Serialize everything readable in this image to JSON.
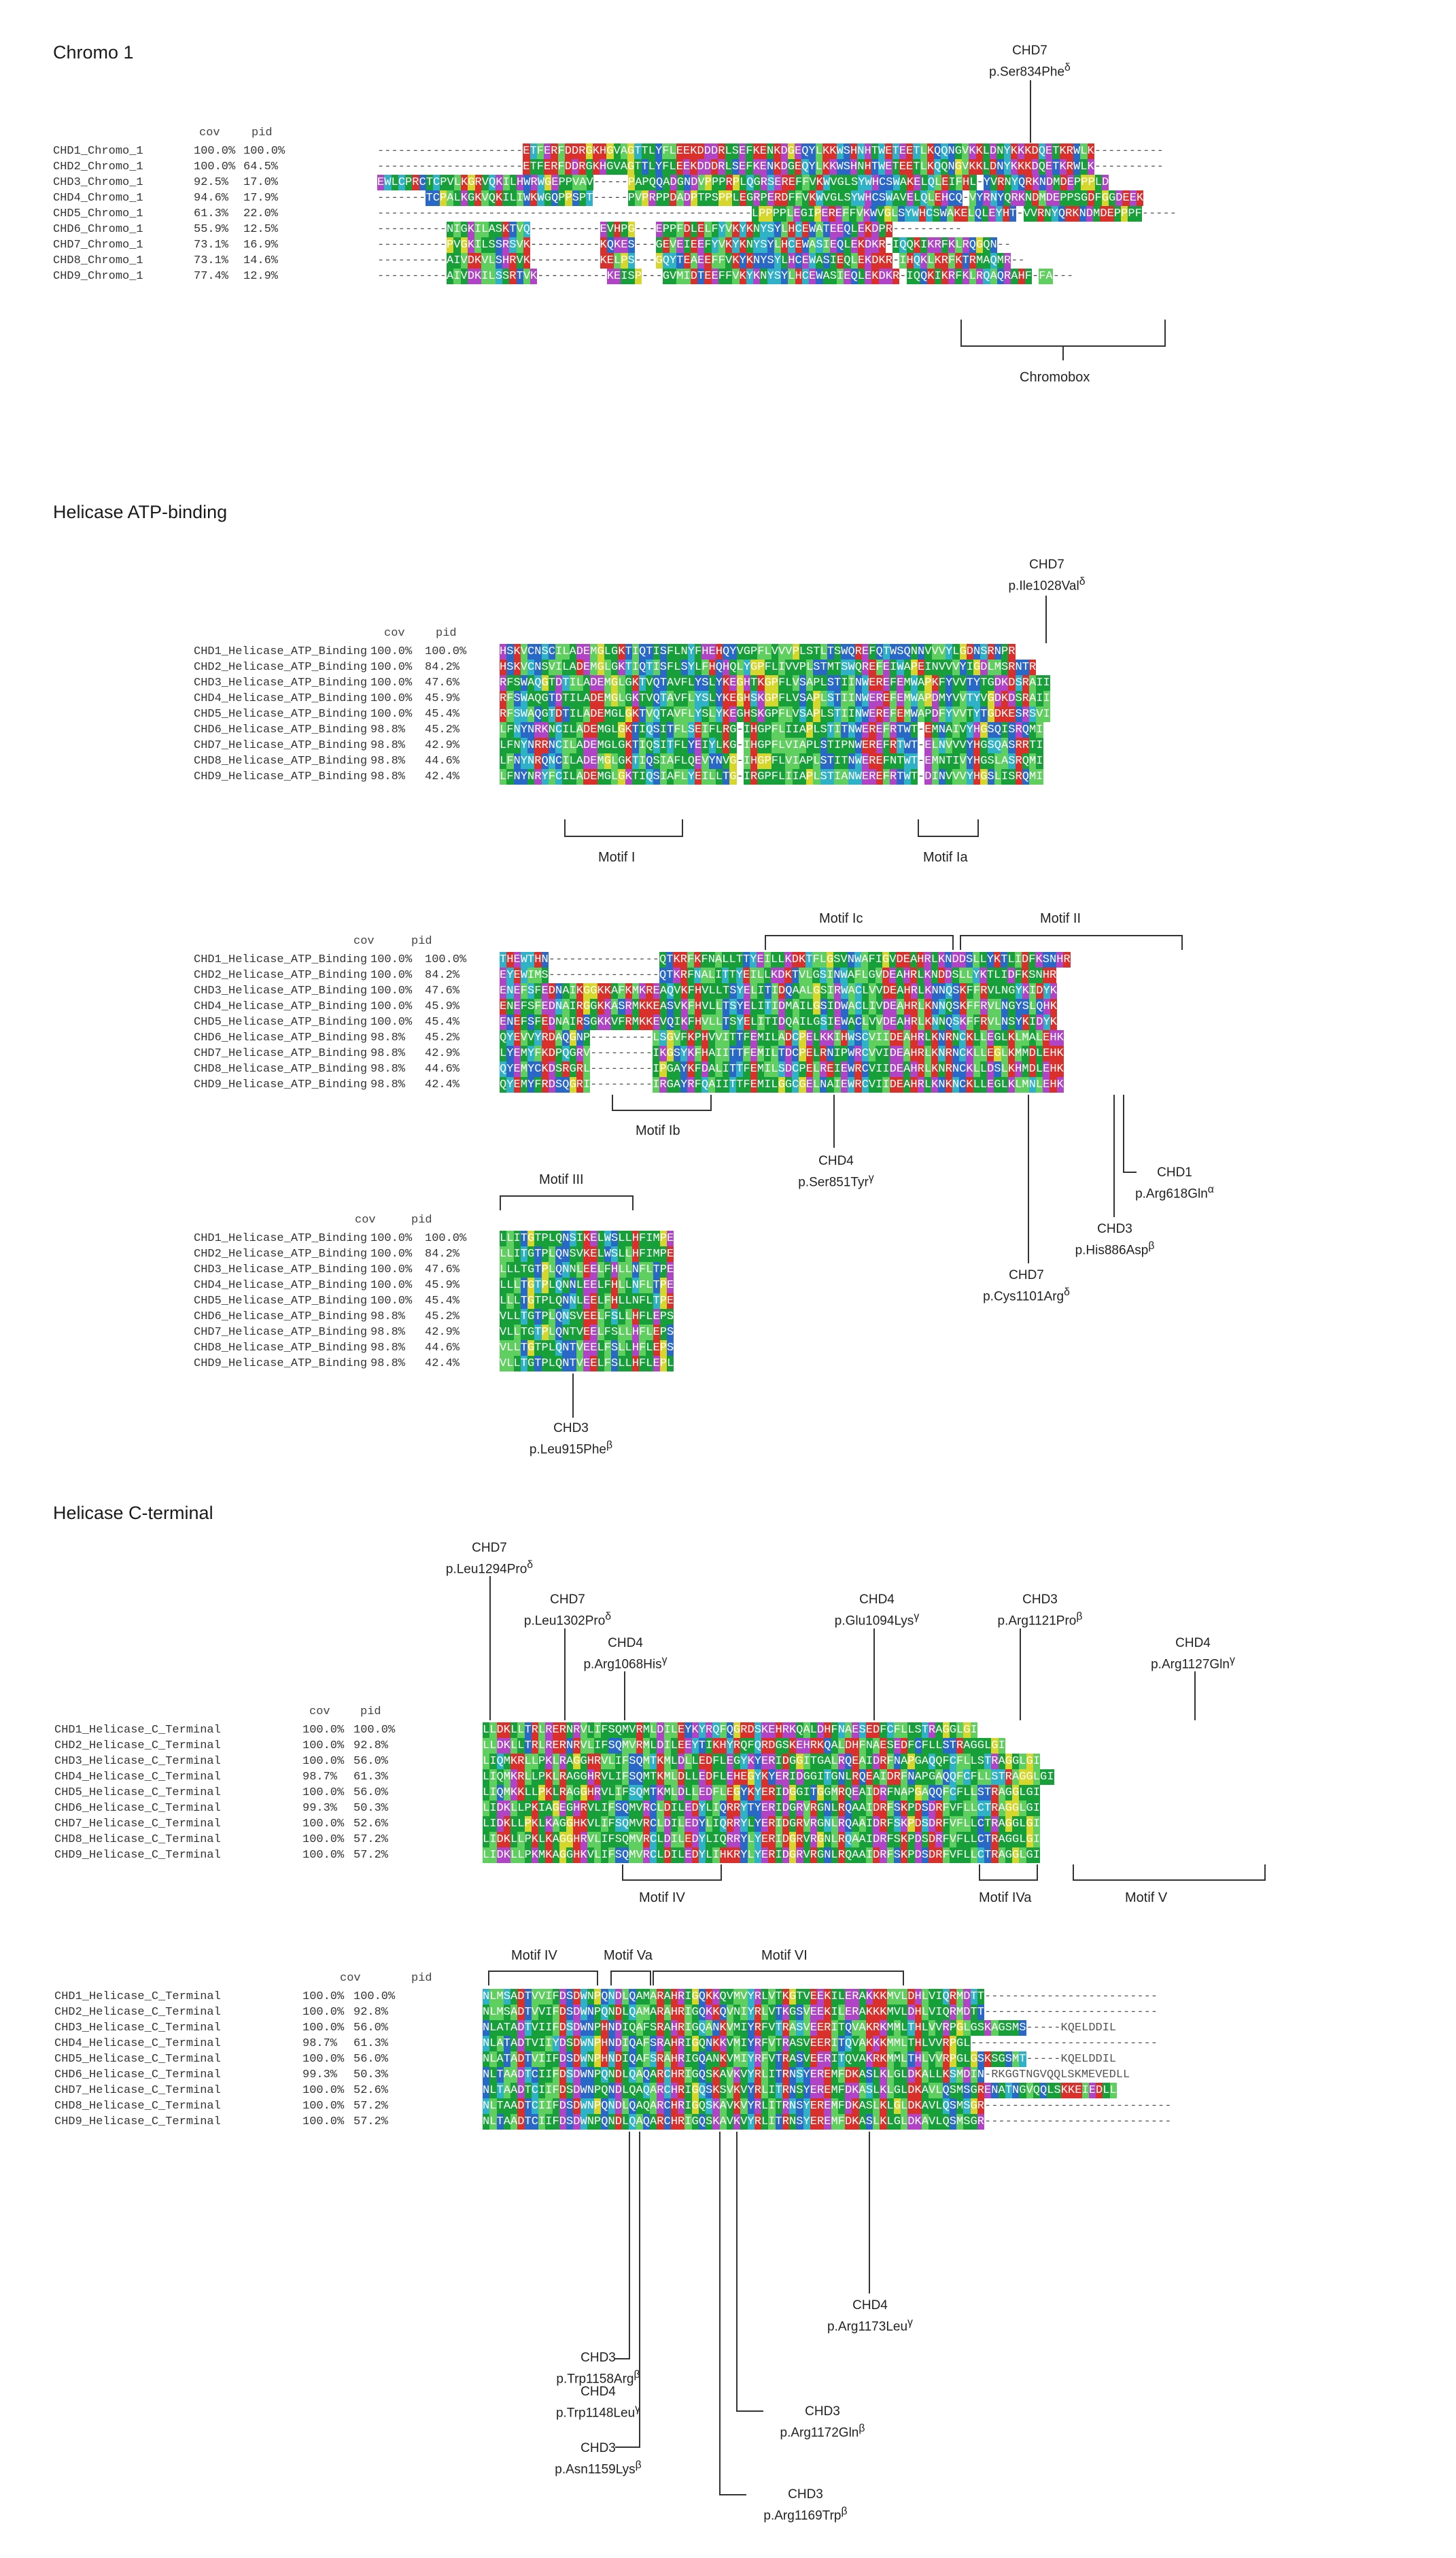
{
  "sections": [
    {
      "id": "chromo",
      "title": "Chromo 1",
      "cov_header": "cov",
      "pid_header": "pid",
      "rows": [
        {
          "name": "CHD1_Chromo_1",
          "cov": "100.0%",
          "pid": "100.0%",
          "lead": "---------------------",
          "seq": "ETFERFDDRGKHGVAGTTLYFLEEKDDDRLSEFKENKDGEQYLKKWSHNHTWETEETLKQQNGVKKLDNYKKKDQETKRWLK",
          "tail": "----------"
        },
        {
          "name": "CHD2_Chromo_1",
          "cov": "100.0%",
          "pid": "64.5%",
          "lead": "---------------------",
          "seq": "ETFERFDDRGKHGVAGTTLYFLEEKDDDRLSEFKENKDGEQYLKKWSHNHTWETEETLKQQNGVKKLDNYKKKDQETKRWLK",
          "tail": "----------"
        },
        {
          "name": "CHD3_Chromo_1",
          "cov": "92.5%",
          "pid": "17.0%",
          "lead": "EWLCPRCTCPVLKGRVQKILHWRWGEPPVAV-----PAPQQADGNDVPPPRPLQGRSEREFFVKWVGLSYWHCSWAKELQ",
          "seq": "LEIFHL-YVRNYQRKNDMDEPPPLD",
          "tail": ""
        },
        {
          "name": "CHD4_Chromo_1",
          "cov": "94.6%",
          "pid": "17.9%",
          "lead": "-------TCPALKGKVQKILIWKWGQPPSPT-----PVPRPPDADPTPSPPLEGRPERDFFVKWVGLSYWHCSWAVELQ",
          "seq": "LEHCQ-VYRNYQRKNDMDEPPSGDFGGDEEK",
          "tail": ""
        },
        {
          "name": "CHD5_Chromo_1",
          "cov": "61.3%",
          "pid": "22.0%",
          "lead": "------------------------------------------------------LPPPPLEGIPEREFFVKWVGLSYWHCSWAKELQ",
          "seq": "LEYHT-VVRNYQRKNDMDEPPPF",
          "tail": "-----"
        },
        {
          "name": "CHD6_Chromo_1",
          "cov": "55.9%",
          "pid": "12.5%",
          "lead": "----------NIGKILASKTVQ----------EVHPG---EPPFDLELFYVKYKNYSYLHCEWATEEQLEKDPR",
          "seq": "",
          "tail": "----------"
        },
        {
          "name": "CHD7_Chromo_1",
          "cov": "73.1%",
          "pid": "16.9%",
          "lead": "----------PVGKILSSRSVK----------KQKES---GEVEIEEFYVKYKNYSYLHCEWASIEQLEKDKR-IQQKIKRFKLRQGQN",
          "seq": "",
          "tail": "--"
        },
        {
          "name": "CHD8_Chromo_1",
          "cov": "73.1%",
          "pid": "14.6%",
          "lead": "----------AIVDKVLSHRVK----------KELPS---GQYTEAEEFFVKYKNYSYLHCEWASIEQLEKDKR-IHQKLKRFKTRMAQMR",
          "seq": "",
          "tail": "--"
        },
        {
          "name": "CHD9_Chromo_1",
          "cov": "77.4%",
          "pid": "12.9%",
          "lead": "----------AIVDKILSSRTVK----------KEISP---GVMIDTEEFFVKYKNYSYLHCEWASIEQLEKDKR-IQQKIKRFKLRQAQRAHF-FA",
          "seq": "",
          "tail": "---"
        }
      ]
    }
  ],
  "annotations": {
    "chromo_chd7_gene": "CHD7",
    "chromo_chd7_var": "p.Ser834Phe",
    "chromo_chd7_sup": "δ",
    "chromobox": "Chromobox",
    "helicase_title": "Helicase ATP-binding",
    "hel_chd7_gene": "CHD7",
    "hel_chd7_var": "p.Ile1028Val",
    "hel_chd7_sup": "δ",
    "motif_i": "Motif I",
    "motif_ia": "Motif Ia",
    "motif_ic": "Motif Ic",
    "motif_ii": "Motif II",
    "motif_ib": "Motif Ib",
    "chd4_ser_gene": "CHD4",
    "chd4_ser_var": "p.Ser851Tyr",
    "chd4_ser_sup": "γ",
    "chd1_arg_gene": "CHD1",
    "chd1_arg_var": "p.Arg618Gln",
    "chd1_arg_sup": "α",
    "chd3_his_gene": "CHD3",
    "chd3_his_var": "p.His886Asp",
    "chd3_his_sup": "β",
    "chd7_cys_gene": "CHD7",
    "chd7_cys_var": "p.Cys1101Arg",
    "chd7_cys_sup": "δ",
    "motif_iii": "Motif III",
    "chd3_leu_gene": "CHD3",
    "chd3_leu_var": "p.Leu915Phe",
    "chd3_leu_sup": "β",
    "cterm_title": "Helicase C-terminal",
    "ct_chd7a_gene": "CHD7",
    "ct_chd7a_var": "p.Leu1294Pro",
    "ct_chd7a_sup": "δ",
    "ct_chd7b_gene": "CHD7",
    "ct_chd7b_var": "p.Leu1302Pro",
    "ct_chd7b_sup": "δ",
    "ct_chd4a_gene": "CHD4",
    "ct_chd4a_var": "p.Arg1068His",
    "ct_chd4a_sup": "γ",
    "ct_chd4b_gene": "CHD4",
    "ct_chd4b_var": "p.Glu1094Lys",
    "ct_chd4b_sup": "γ",
    "ct_chd3a_gene": "CHD3",
    "ct_chd3a_var": "p.Arg1121Pro",
    "ct_chd3a_sup": "β",
    "ct_chd4c_gene": "CHD4",
    "ct_chd4c_var": "p.Arg1127Gln",
    "ct_chd4c_sup": "γ",
    "motif_iv": "Motif IV",
    "motif_iva": "Motif IVa",
    "motif_v": "Motif V",
    "motif_iv2": "Motif IV",
    "motif_va": "Motif Va",
    "motif_vi": "Motif VI",
    "ct2_chd3a_gene": "CHD3",
    "ct2_chd3a_var": "p.Trp1158Arg",
    "ct2_chd3a_sup": "β",
    "ct2_chd4a_gene": "CHD4",
    "ct2_chd4a_var": "p.Trp1148Leu",
    "ct2_chd4a_sup": "γ",
    "ct2_chd3b_gene": "CHD3",
    "ct2_chd3b_var": "p.Asn1159Lys",
    "ct2_chd3b_sup": "β",
    "ct2_chd4b_gene": "CHD4",
    "ct2_chd4b_var": "p.Arg1173Leu",
    "ct2_chd4b_sup": "γ",
    "ct2_chd3c_gene": "CHD3",
    "ct2_chd3c_var": "p.Arg1172Gln",
    "ct2_chd3c_sup": "β",
    "ct2_chd3d_gene": "CHD3",
    "ct2_chd3d_var": "p.Arg1169Trp",
    "ct2_chd3d_sup": "β"
  },
  "blocks": {
    "hel1": {
      "cov_header": "cov",
      "pid_header": "pid",
      "rows": [
        {
          "name": "CHD1_Helicase_ATP_Binding",
          "cov": "100.0%",
          "pid": "100.0%",
          "seq": "HSKVCNSCILADEMGLGKTIQTISFLNYFHEHQYVGPFLVVVPLSTLTSWQREFQTWSQNNVVVYLGDNSRNPR"
        },
        {
          "name": "CHD2_Helicase_ATP_Binding",
          "cov": "100.0%",
          "pid": "84.2%",
          "seq": "HSKVCNSVILADEMGLGKTIQTISFLSYLFHQHQLYGPFLIVVPLSTMTSWQREFEIWAPEINVVVYIGDLMSRNTR"
        },
        {
          "name": "CHD3_Helicase_ATP_Binding",
          "cov": "100.0%",
          "pid": "47.6%",
          "seq": "RFSWAQGTDTILADEMGLGKTVQTAVFLYSLYKEGHTKGPFLVSAPLSTIINWEREFEMWAPKFYVVTYTGDKDSRAII"
        },
        {
          "name": "CHD4_Helicase_ATP_Binding",
          "cov": "100.0%",
          "pid": "45.9%",
          "seq": "RFSWAQGTDTILADEMGLGKTVQTAVFLYSLYKEGHSKGPFLVSAPLSTIINWEREFEMWAPDMYVVTYVGDKDSRAII"
        },
        {
          "name": "CHD5_Helicase_ATP_Binding",
          "cov": "100.0%",
          "pid": "45.4%",
          "seq": "RFSWAQGTDTILADEMGLGKTVQTAVFLYSLYKEGHSKGPFLVSAPLSTIINWEREFEMWAPDFYVVTYTGDKESRSVI"
        },
        {
          "name": "CHD6_Helicase_ATP_Binding",
          "cov": "98.8%",
          "pid": "45.2%",
          "seq": "LFNYNRKNCILADEMGLGKTIQSITFLSEIFLRG-IHGPFLIIAPLSTITNWEREFRTWT-EMNAIVYHGSQISRQMI"
        },
        {
          "name": "CHD7_Helicase_ATP_Binding",
          "cov": "98.8%",
          "pid": "42.9%",
          "seq": "LFNYNRRNCILADEMGLGKTIQSITFLYEIYLKG-IHGPFLVIAPLSTIPNWEREFRTWT-ELNVVVYHGSQASRRTI"
        },
        {
          "name": "CHD8_Helicase_ATP_Binding",
          "cov": "98.8%",
          "pid": "44.6%",
          "seq": "LFNYNRQNCILADEMGLGKTIQSIAFLQEVYNVG-IHGPFLVIAPLSTITNWEREFNTWT-EMNTIVYHGSLASRQMI"
        },
        {
          "name": "CHD9_Helicase_ATP_Binding",
          "cov": "98.8%",
          "pid": "42.4%",
          "seq": "LFNYNRYFCILADEMGLGKTIQSIAFLYEILLTG-IRGPFLIIAPLSTIANWEREFRTWT-DINVVVYHGSLISRQMI"
        }
      ]
    },
    "hel2": {
      "cov_header": "cov",
      "pid_header": "pid",
      "rows": [
        {
          "name": "CHD1_Helicase_ATP_Binding",
          "cov": "100.0%",
          "pid": "100.0%",
          "lead": "THEWTHN",
          "dash": "----------------",
          "seq": "QTKRFKFNALLTTYEILLKDKTFLGSVNWAFIGVDEAHRLKNDDSLLYKTLIDFKSNHR"
        },
        {
          "name": "CHD2_Helicase_ATP_Binding",
          "cov": "100.0%",
          "pid": "84.2%",
          "lead": "EYEWIMS",
          "dash": "----------------",
          "seq": "QTKRFNALITTYEILLKDKTVLGSINWAFLGVDEAHRLKNDDSLLYKTLIDFKSNHR"
        },
        {
          "name": "CHD3_Helicase_ATP_Binding",
          "cov": "100.0%",
          "pid": "47.6%",
          "lead": "ENEFSFEDNAIKGGKKAFKMKREAQV",
          "dash": "",
          "seq": "KFHVLLTSYELITIDQAALGSIRWACLVVDEAHRLKNNQSKFFRVLNGYKIDYK"
        },
        {
          "name": "CHD4_Helicase_ATP_Binding",
          "cov": "100.0%",
          "pid": "45.9%",
          "lead": "ENEFSFEDNAIRGGKKASRMKKEASV",
          "dash": "",
          "seq": "KFHVLLTSYELITIDMAILGSIDWACLIVDEAHRLKNNQSKFFRVLNGYSLQHK"
        },
        {
          "name": "CHD5_Helicase_ATP_Binding",
          "cov": "100.0%",
          "pid": "45.4%",
          "lead": "ENEFSFEDNAIRSGKKVFRMKKEVQI",
          "dash": "",
          "seq": "KFHVLLTSYELITIDQAILGSIEWACLVVDEAHRLKNNQSKFFRVLNSYKIDYK"
        },
        {
          "name": "CHD6_Helicase_ATP_Binding",
          "cov": "98.8%",
          "pid": "45.2%",
          "lead": "QYEVVYRDAQGNP",
          "dash": "---------",
          "seq": "LSGVFKPHVVITTFEMILADCPELKKIHWSCVIIDEAHRLKNRNCKLLEGLKLMALEHK"
        },
        {
          "name": "CHD7_Helicase_ATP_Binding",
          "cov": "98.8%",
          "pid": "42.9%",
          "lead": "LYEMYFKDPQGRV",
          "dash": "---------",
          "seq": "IKGSYKFHAIITTFEMILTDCPELRNIPWRCVVIDEAHRLKNRNCKLLEGLKMMDLEHK"
        },
        {
          "name": "CHD8_Helicase_ATP_Binding",
          "cov": "98.8%",
          "pid": "44.6%",
          "lead": "QYEMYCKDSRGRL",
          "dash": "---------",
          "seq": "IPGAYKFDALITTFEMILSDCPELREIEWRCVIIDEAHRLKNRNCKLLDSLKHMDLEHK"
        },
        {
          "name": "CHD9_Helicase_ATP_Binding",
          "cov": "98.8%",
          "pid": "42.4%",
          "lead": "QYEMYFRDSQGRI",
          "dash": "---------",
          "seq": "IRGAYRFQAIITTFEMILGGCGELNAIEWRCVIIDEAHRLKNKNCKLLEGLKLMNLEHK"
        }
      ]
    },
    "hel3": {
      "cov_header": "cov",
      "pid_header": "pid",
      "rows": [
        {
          "name": "CHD1_Helicase_ATP_Binding",
          "cov": "100.0%",
          "pid": "100.0%",
          "seq": "LLITGTPLQNSIKELWSLLHFIMPE"
        },
        {
          "name": "CHD2_Helicase_ATP_Binding",
          "cov": "100.0%",
          "pid": "84.2%",
          "seq": "LLITGTPLQNSVKELWSLLHFIMPE"
        },
        {
          "name": "CHD3_Helicase_ATP_Binding",
          "cov": "100.0%",
          "pid": "47.6%",
          "seq": "LLLTGTPLQNNLEELFHLLNFLTPE"
        },
        {
          "name": "CHD4_Helicase_ATP_Binding",
          "cov": "100.0%",
          "pid": "45.9%",
          "seq": "LLLTGTPLQNNLEELFHLLNFLTPE"
        },
        {
          "name": "CHD5_Helicase_ATP_Binding",
          "cov": "100.0%",
          "pid": "45.4%",
          "seq": "LLLTGTPLQNNLEELFHLLNFLTPE"
        },
        {
          "name": "CHD6_Helicase_ATP_Binding",
          "cov": "98.8%",
          "pid": "45.2%",
          "seq": "VLLTGTPLQNSVEELFSLLHFLEPS"
        },
        {
          "name": "CHD7_Helicase_ATP_Binding",
          "cov": "98.8%",
          "pid": "42.9%",
          "seq": "VLLTGTPLQNTVEELFSLLHFLEPS"
        },
        {
          "name": "CHD8_Helicase_ATP_Binding",
          "cov": "98.8%",
          "pid": "44.6%",
          "seq": "VLLTGTPLQNTVEELFSLLHFLEPS"
        },
        {
          "name": "CHD9_Helicase_ATP_Binding",
          "cov": "98.8%",
          "pid": "42.4%",
          "seq": "VLLTGTPLQNTVEELFSLLHFLEPL"
        }
      ]
    },
    "ct1": {
      "cov_header": "cov",
      "pid_header": "pid",
      "rows": [
        {
          "name": "CHD1_Helicase_C_Terminal",
          "cov": "100.0%",
          "pid": "100.0%",
          "seq": "LLDKLLTRLRERNRVLIFSQMVRMLDILEYKYRQFQGRDSKEHRKQALDHFNAESEDFCFLLSTRAGGLGI"
        },
        {
          "name": "CHD2_Helicase_C_Terminal",
          "cov": "100.0%",
          "pid": "92.8%",
          "seq": "LLDKLLTRLRERNRVLIFSQMVRMLDILEEYTIKHYRQFQRDGSKEHRKQALDHFNAESEDFCFLLSTRAGGLGI"
        },
        {
          "name": "CHD3_Helicase_C_Terminal",
          "cov": "100.0%",
          "pid": "56.0%",
          "seq": "LIQMKRLLPKLRAGGHRVLIFSQMTKMLDLLEDFLEGYKYERIDGGITGALRQEAIDRFNAPGAQQFCFLLSTRAGGLGI"
        },
        {
          "name": "CHD4_Helicase_C_Terminal",
          "cov": "98.7%",
          "pid": "61.3%",
          "seq": "LIQMKRLLPKLRAGGHRVLIFSQMTKMLDLLEDFLEHEGYKYERIDGGITGNLRQEAIDRFNAPGAQQFCFLLSTRAGGLGI"
        },
        {
          "name": "CHD5_Helicase_C_Terminal",
          "cov": "100.0%",
          "pid": "56.0%",
          "seq": "LIQMKKLLPKLRAGGHRVLIFSQMTKMLDLLEDFLEGYKYERIDGGITGGMRQEAIDRFNAPGAQQFCFLLSTRAGGLGI"
        },
        {
          "name": "CHD6_Helicase_C_Terminal",
          "cov": "99.3%",
          "pid": "50.3%",
          "seq": "LIDKLLPKIAGEGHRVLIFSQMVRCLDILEDYLIQRRYTYERIDGRVRGNLRQAAIDRFSKPDSDRFVFLLCTRAGGLGI"
        },
        {
          "name": "CHD7_Helicase_C_Terminal",
          "cov": "100.0%",
          "pid": "52.6%",
          "seq": "LIDKLLPKLKAGGHKVLIFSQMVRCLDILEDYLIQRRYLYERIDGRVRGNLRQAAIDRFSKPDSDRFVFLLCTRAGGLGI"
        },
        {
          "name": "CHD8_Helicase_C_Terminal",
          "cov": "100.0%",
          "pid": "57.2%",
          "seq": "LIDKLLPKLKAGGHRVLIFSQMVRCLDILEDYLIQRRYLYERIDGRVRGNLRQAAIDRFSKPDSDRFVFLLCTRAGGLGI"
        },
        {
          "name": "CHD9_Helicase_C_Terminal",
          "cov": "100.0%",
          "pid": "57.2%",
          "seq": "LIDKLLPKMKAGGHKVLIFSQMVRCLDILEDYLIHKRYLYERIDGRVRGNLRQAAIDRFSKPDSDRFVFLLCTRAGGLGI"
        }
      ]
    },
    "ct2": {
      "cov_header": "cov",
      "pid_header": "pid",
      "rows": [
        {
          "name": "CHD1_Helicase_C_Terminal",
          "cov": "100.0%",
          "pid": "100.0%",
          "seq": "NLMSADTVVIFDSDWNPQNDLQAMARAHRIGQKKQVMVYRLVTKGTVEEKILERAKKKMVLDHLVIQRMDTT",
          "tail": "-------------------------"
        },
        {
          "name": "CHD2_Helicase_C_Terminal",
          "cov": "100.0%",
          "pid": "92.8%",
          "seq": "NLMSADTVVIFDSDWNPQNDLQAMARAHRIGQKKQVNIYRLVTKGSVEEKILERAKKKMVLDHLVIQRMDTT",
          "tail": "-------------------------"
        },
        {
          "name": "CHD3_Helicase_C_Terminal",
          "cov": "100.0%",
          "pid": "56.0%",
          "seq": "NLATADTVIIFDSDWNPHNDIQAFSRAHRIGQANKVMIYRFVTRASVEERITQVAKRKMMLTHLVVRPGLGSKAGSMS-----KQELDDIL",
          "tail": ""
        },
        {
          "name": "CHD4_Helicase_C_Terminal",
          "cov": "98.7%",
          "pid": "61.3%",
          "seq": "NLATADTVIIYDSDWNPHNDIQAFSRAHRIGQNKKVMIYRFVTRASVEERITQVAKKKMMLTHLVVRPGL",
          "tail": "---------------------------"
        },
        {
          "name": "CHD5_Helicase_C_Terminal",
          "cov": "100.0%",
          "pid": "56.0%",
          "seq": "NLATADTVIIFDSDWNPHNDIQAFSRAHRIGQANKVMIYRFVTRASVEERITQVAKRKMMLTHLVVRPGLGSKSGSMT-----KQELDDIL",
          "tail": ""
        },
        {
          "name": "CHD6_Helicase_C_Terminal",
          "cov": "99.3%",
          "pid": "50.3%",
          "seq": "NLTAADTCIIFDSDWNPQNDLQAQARCHRIGQSKAVKVYRLITRNSYEREMFDKASLKLGLDKALLKSMDIN-RKGGTNGVQQLSKMEVEDLL",
          "tail": ""
        },
        {
          "name": "CHD7_Helicase_C_Terminal",
          "cov": "100.0%",
          "pid": "52.6%",
          "seq": "NLTAADTCIIFDSDWNPQNDLQAQARCHRIGQSKSVKVYRLITRNSYEREMFDKASLKLGLDKAVLQSMSGRENATNGVQQLSKKEIEDLL",
          "tail": ""
        },
        {
          "name": "CHD8_Helicase_C_Terminal",
          "cov": "100.0%",
          "pid": "57.2%",
          "seq": "NLTAADTCIIFDSDWNPQNDLQAQARCHRIGQSKAVKVYRLITRNSYEREMFDKASLKLGLDKAVLQSMSGR",
          "tail": "---------------------------"
        },
        {
          "name": "CHD9_Helicase_C_Terminal",
          "cov": "100.0%",
          "pid": "57.2%",
          "seq": "NLTAADTCIIFDSDWNPQNDLQAQARCHRIGQSKAVKVYRLITRNSYEREMFDKASLKLGLDKAVLQSMSGR",
          "tail": "---------------------------"
        }
      ]
    }
  },
  "colors": {
    "green": "#17a03a",
    "light_green": "#5fcf5f",
    "blue": "#2a68c8",
    "cyan": "#2fb2c8",
    "red": "#d9302c",
    "magenta": "#b043c6",
    "yellow": "#d6d62c"
  }
}
